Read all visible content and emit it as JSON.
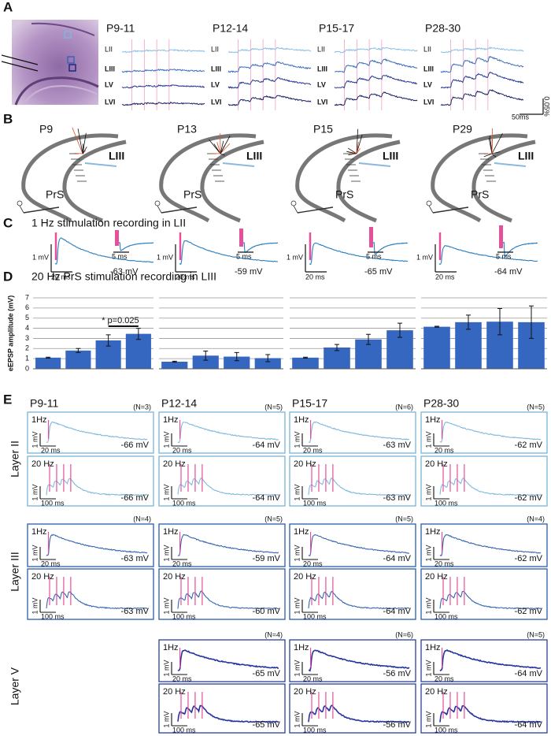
{
  "panel_a": {
    "label": "A",
    "groups": [
      "P9-11",
      "P12-14",
      "P15-17",
      "P28-30"
    ],
    "layers": [
      "LII",
      "LIII",
      "LV",
      "LVI"
    ],
    "time_scale": "50ms",
    "amp_scale": "0.05%"
  },
  "panel_b": {
    "label": "B",
    "ages": [
      "P9",
      "P13",
      "P15",
      "P29"
    ],
    "layer": "LIII",
    "region": "PrS"
  },
  "panel_c": {
    "label": "C",
    "title": "1 Hz stimulation recording in LII",
    "cells": [
      [
        "1 mV",
        "20 ms",
        "5 ms",
        "-63 mV"
      ],
      [
        "1 mV",
        "20 ms",
        "5 ms",
        "-59 mV"
      ],
      [
        "1 mV",
        "20 ms",
        "5 ms",
        "-65 mV"
      ],
      [
        "1 mV",
        "20 ms",
        "5 ms",
        "-64 mV"
      ]
    ]
  },
  "panel_d": {
    "label": "D",
    "title": "20 Hz PrS stimulation recording in LIII"
  },
  "chart_data": [
    {
      "type": "bar",
      "y_label": "eEPSP amplitude (mV)",
      "annotation": "* p=0.025",
      "color": "#3566c0",
      "values": [
        1.1,
        1.8,
        2.8,
        3.45
      ],
      "errors": [
        0.05,
        0.2,
        0.55,
        0.55
      ],
      "ylim": [
        0,
        7
      ],
      "yticks": [
        0,
        1,
        2,
        3,
        4,
        5,
        6,
        7
      ],
      "tick_labels": true,
      "grid": true
    },
    {
      "type": "bar",
      "color": "#3566c0",
      "values": [
        0.7,
        1.3,
        1.2,
        1.05
      ],
      "errors": [
        0.05,
        0.45,
        0.4,
        0.35
      ],
      "ylim": [
        0,
        7
      ],
      "yticks": [
        0,
        1,
        2,
        3,
        4,
        5,
        6,
        7
      ],
      "tick_labels": false,
      "grid": true
    },
    {
      "type": "bar",
      "color": "#3566c0",
      "values": [
        1.1,
        2.1,
        2.9,
        3.8
      ],
      "errors": [
        0.05,
        0.3,
        0.5,
        0.7
      ],
      "ylim": [
        0,
        7
      ],
      "yticks": [
        0,
        1,
        2,
        3,
        4,
        5,
        6,
        7
      ],
      "tick_labels": false,
      "grid": true
    },
    {
      "type": "bar",
      "color": "#3566c0",
      "values": [
        4.15,
        4.6,
        4.65,
        4.6
      ],
      "errors": [
        0.05,
        0.7,
        1.3,
        1.6
      ],
      "ylim": [
        0,
        7
      ],
      "yticks": [
        0,
        1,
        2,
        3,
        4,
        5,
        6,
        7
      ],
      "tick_labels": false,
      "grid": true
    }
  ],
  "panel_e": {
    "label": "E",
    "columns": [
      "P9-11",
      "P12-14",
      "P15-17",
      "P28-30"
    ],
    "rows": [
      {
        "label": "Layer II",
        "cells": [
          {
            "n": "(N=3)",
            "one_hz": [
              "1Hz",
              "1 mV",
              "20 ms",
              "-66 mV"
            ],
            "twenty_hz": [
              "20 Hz",
              "1 mV",
              "100 ms",
              "-66 mV"
            ]
          },
          {
            "n": "(N=5)",
            "one_hz": [
              "1Hz",
              "1 mV",
              "20 ms",
              "-64 mV"
            ],
            "twenty_hz": [
              "20 Hz",
              "1 mV",
              "100 ms",
              "-64 mV"
            ]
          },
          {
            "n": "(N=6)",
            "one_hz": [
              "1Hz",
              "1 mV",
              "20 ms",
              "-63 mV"
            ],
            "twenty_hz": [
              "20 Hz",
              "1 mV",
              "100 ms",
              "-63 mV"
            ]
          },
          {
            "n": "(N=5)",
            "one_hz": [
              "1Hz",
              "1 mV",
              "20 ms",
              "-62 mV"
            ],
            "twenty_hz": [
              "20 Hz",
              "1 mV",
              "100 ms",
              "-62 mV"
            ]
          }
        ]
      },
      {
        "label": "Layer III",
        "cells": [
          {
            "n": "(N=4)",
            "one_hz": [
              "1Hz",
              "1 mV",
              "20 ms",
              "-63 mV"
            ],
            "twenty_hz": [
              "20 Hz",
              "1 mV",
              "100 ms",
              "-63 mV"
            ]
          },
          {
            "n": "(N=5)",
            "one_hz": [
              "1Hz",
              "1 mV",
              "20 ms",
              "-59 mV"
            ],
            "twenty_hz": [
              "20 Hz",
              "1 mV",
              "100 ms",
              "-60 mV"
            ]
          },
          {
            "n": "(N=5)",
            "one_hz": [
              "1Hz",
              "1 mV",
              "20 ms",
              "-64 mV"
            ],
            "twenty_hz": [
              "20 Hz",
              "1 mV",
              "100 ms",
              "-64 mV"
            ]
          },
          {
            "n": "(N=4)",
            "one_hz": [
              "1Hz",
              "1 mV",
              "20 ms",
              "-62 mV"
            ],
            "twenty_hz": [
              "20 Hz",
              "1 mV",
              "100 ms",
              "-62 mV"
            ]
          }
        ]
      },
      {
        "label": "Layer V",
        "cells": [
          null,
          {
            "n": "(N=4)",
            "one_hz": [
              "1Hz",
              "1 mV",
              "20 ms",
              "-65 mV"
            ],
            "twenty_hz": [
              "20 Hz",
              "1 mV",
              "100 ms",
              "-65 mV"
            ]
          },
          {
            "n": "(N=6)",
            "one_hz": [
              "1Hz",
              "1 mV",
              "20 ms",
              "-56 mV"
            ],
            "twenty_hz": [
              "20 Hz",
              "1 mV",
              "100 ms",
              "-56 mV"
            ]
          },
          {
            "n": "(N=5)",
            "one_hz": [
              "1Hz",
              "1 mV",
              "20 ms",
              "-64 mV"
            ],
            "twenty_hz": [
              "20 Hz",
              "1 mV",
              "100 ms",
              "-64 mV"
            ]
          }
        ]
      }
    ]
  }
}
